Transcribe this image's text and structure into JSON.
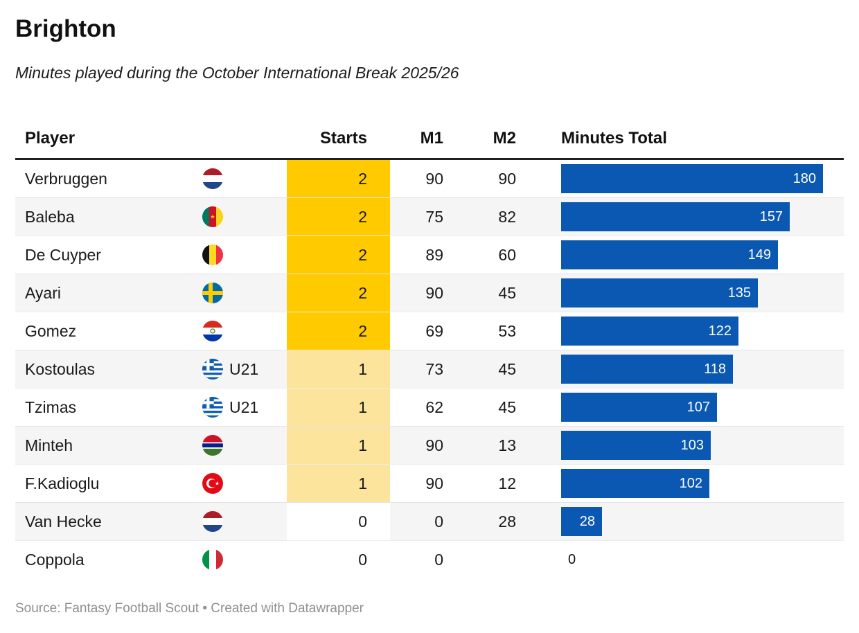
{
  "header": {
    "title": "Brighton",
    "subtitle": "Minutes played during the October International Break 2025/26"
  },
  "table": {
    "columns": {
      "player": "Player",
      "starts": "Starts",
      "m1": "M1",
      "m2": "M2",
      "total": "Minutes Total"
    },
    "players": [
      {
        "name": "Verbruggen",
        "flag": "netherlands",
        "badge": "",
        "starts": "2",
        "m1": "90",
        "m2": "90",
        "total": 180
      },
      {
        "name": "Baleba",
        "flag": "cameroon",
        "badge": "",
        "starts": "2",
        "m1": "75",
        "m2": "82",
        "total": 157
      },
      {
        "name": "De Cuyper",
        "flag": "belgium",
        "badge": "",
        "starts": "2",
        "m1": "89",
        "m2": "60",
        "total": 149
      },
      {
        "name": "Ayari",
        "flag": "sweden",
        "badge": "",
        "starts": "2",
        "m1": "90",
        "m2": "45",
        "total": 135
      },
      {
        "name": "Gomez",
        "flag": "paraguay",
        "badge": "",
        "starts": "2",
        "m1": "69",
        "m2": "53",
        "total": 122
      },
      {
        "name": "Kostoulas",
        "flag": "greece",
        "badge": "U21",
        "starts": "1",
        "m1": "73",
        "m2": "45",
        "total": 118
      },
      {
        "name": "Tzimas",
        "flag": "greece",
        "badge": "U21",
        "starts": "1",
        "m1": "62",
        "m2": "45",
        "total": 107
      },
      {
        "name": "Minteh",
        "flag": "gambia",
        "badge": "",
        "starts": "1",
        "m1": "90",
        "m2": "13",
        "total": 103
      },
      {
        "name": "F.Kadioglu",
        "flag": "turkey",
        "badge": "",
        "starts": "1",
        "m1": "90",
        "m2": "12",
        "total": 102
      },
      {
        "name": "Van Hecke",
        "flag": "netherlands",
        "badge": "",
        "starts": "0",
        "m1": "0",
        "m2": "28",
        "total": 28
      },
      {
        "name": "Coppola",
        "flag": "italy",
        "badge": "",
        "starts": "0",
        "m1": "0",
        "m2": "",
        "total": 0
      }
    ],
    "colors": {
      "bar_blue": "#0a58b1",
      "starts_2": "#ffcb00",
      "starts_1": "#fde49c",
      "starts_0": "#ffffff",
      "row_alt": "#f5f5f5"
    },
    "max_total": 180
  },
  "footer": {
    "source": "Source: Fantasy Football Scout • Created with Datawrapper"
  },
  "chart_data": {
    "type": "table",
    "title": "Brighton",
    "subtitle": "Minutes played during the October International Break 2025/26",
    "columns": [
      "Player",
      "Starts",
      "M1",
      "M2",
      "Minutes Total"
    ],
    "bar_column": "Minutes Total",
    "bar_range": [
      0,
      180
    ],
    "rows": [
      [
        "Verbruggen",
        2,
        90,
        90,
        180
      ],
      [
        "Baleba",
        2,
        75,
        82,
        157
      ],
      [
        "De Cuyper",
        2,
        89,
        60,
        149
      ],
      [
        "Ayari",
        2,
        90,
        45,
        135
      ],
      [
        "Gomez",
        2,
        69,
        53,
        122
      ],
      [
        "Kostoulas",
        1,
        73,
        45,
        118
      ],
      [
        "Tzimas",
        1,
        62,
        45,
        107
      ],
      [
        "Minteh",
        1,
        90,
        13,
        103
      ],
      [
        "F.Kadioglu",
        1,
        90,
        12,
        102
      ],
      [
        "Van Hecke",
        0,
        0,
        28,
        28
      ],
      [
        "Coppola",
        0,
        0,
        null,
        0
      ]
    ]
  }
}
